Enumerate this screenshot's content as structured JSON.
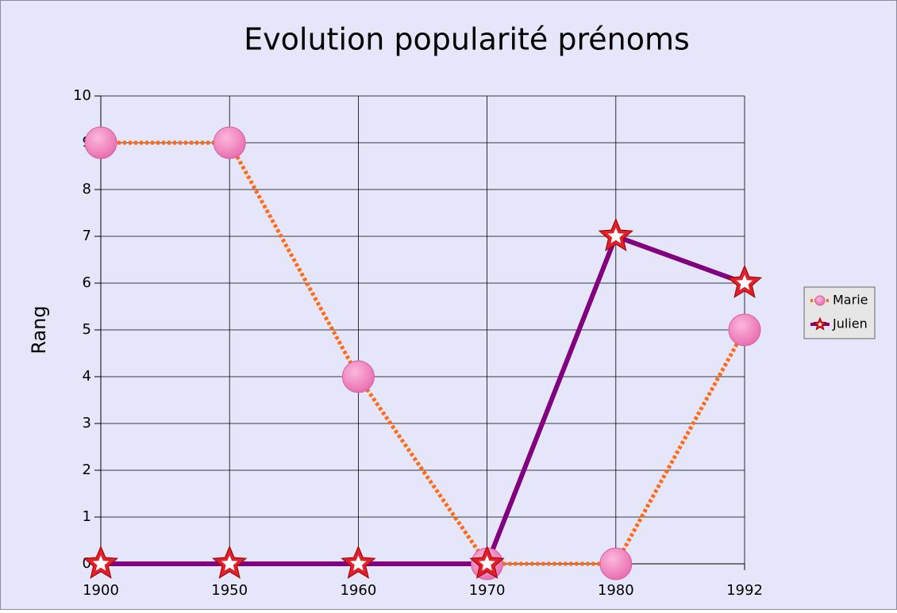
{
  "chart_data": {
    "type": "line",
    "title": "Evolution popularité prénoms",
    "y_label": "Rang",
    "categories": [
      "1900",
      "1950",
      "1960",
      "1970",
      "1980",
      "1992"
    ],
    "series": [
      {
        "name": "Marie",
        "color": "#ff6a13",
        "dash": true,
        "marker": "circle",
        "marker_color": "#f27fbd",
        "values": [
          9,
          9,
          4,
          0,
          0,
          5
        ]
      },
      {
        "name": "Julien",
        "color": "#800080",
        "dash": false,
        "marker": "star",
        "marker_color": "#e0202a",
        "values": [
          0,
          0,
          0,
          0,
          7,
          6
        ]
      }
    ],
    "ylim": [
      0,
      10
    ],
    "yticks": [
      0,
      1,
      2,
      3,
      4,
      5,
      6,
      7,
      8,
      9,
      10
    ],
    "grid": true,
    "legend": "right"
  }
}
